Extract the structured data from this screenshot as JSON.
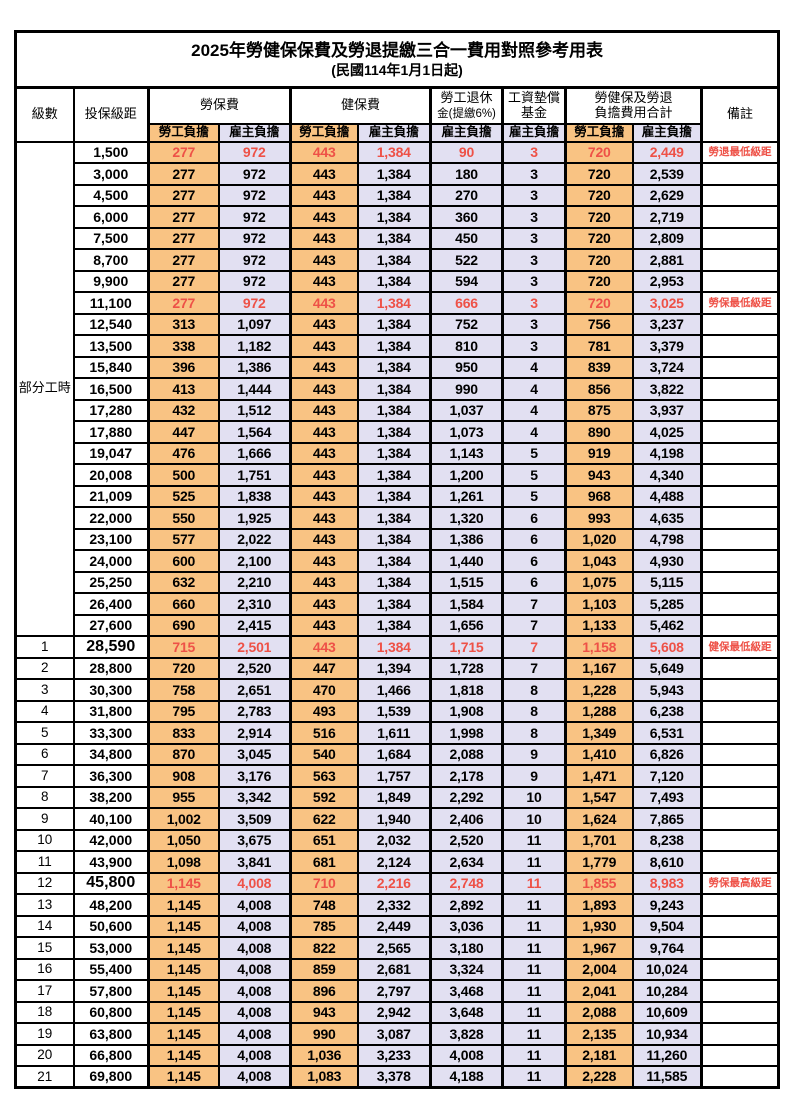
{
  "title": "2025年勞健保保費及勞退提繳三合一費用對照參考用表",
  "subtitle": "(民國114年1月1日起)",
  "header": {
    "level": "級數",
    "bracket": "投保級距",
    "labor_ins": "勞保費",
    "health_ins": "健保費",
    "pension_line1": "勞工退休",
    "pension_line2": "金(提繳6%)",
    "wage_fund_line1": "工資墊償",
    "wage_fund_line2": "基金",
    "total_line1": "勞健保及勞退",
    "total_line2": "負擔費用合計",
    "remark": "備註",
    "employee": "勞工負擔",
    "employer": "雇主負擔"
  },
  "group_label": "部分工時",
  "group_rowspan": 23,
  "colors": {
    "employee_bg": "#f9c383",
    "employer_bg": "#e2e0f2",
    "highlight_red": "#ee5147"
  },
  "rows": [
    {
      "bracket": "1,500",
      "v": [
        "277",
        "972",
        "443",
        "1,384",
        "90",
        "3",
        "720",
        "2,449"
      ],
      "remark": "勞退最低級距",
      "hl": true
    },
    {
      "bracket": "3,000",
      "v": [
        "277",
        "972",
        "443",
        "1,384",
        "180",
        "3",
        "720",
        "2,539"
      ]
    },
    {
      "bracket": "4,500",
      "v": [
        "277",
        "972",
        "443",
        "1,384",
        "270",
        "3",
        "720",
        "2,629"
      ]
    },
    {
      "bracket": "6,000",
      "v": [
        "277",
        "972",
        "443",
        "1,384",
        "360",
        "3",
        "720",
        "2,719"
      ]
    },
    {
      "bracket": "7,500",
      "v": [
        "277",
        "972",
        "443",
        "1,384",
        "450",
        "3",
        "720",
        "2,809"
      ]
    },
    {
      "bracket": "8,700",
      "v": [
        "277",
        "972",
        "443",
        "1,384",
        "522",
        "3",
        "720",
        "2,881"
      ]
    },
    {
      "bracket": "9,900",
      "v": [
        "277",
        "972",
        "443",
        "1,384",
        "594",
        "3",
        "720",
        "2,953"
      ]
    },
    {
      "bracket": "11,100",
      "v": [
        "277",
        "972",
        "443",
        "1,384",
        "666",
        "3",
        "720",
        "3,025"
      ],
      "remark": "勞保最低級距",
      "hl": true
    },
    {
      "bracket": "12,540",
      "v": [
        "313",
        "1,097",
        "443",
        "1,384",
        "752",
        "3",
        "756",
        "3,237"
      ]
    },
    {
      "bracket": "13,500",
      "v": [
        "338",
        "1,182",
        "443",
        "1,384",
        "810",
        "3",
        "781",
        "3,379"
      ]
    },
    {
      "bracket": "15,840",
      "v": [
        "396",
        "1,386",
        "443",
        "1,384",
        "950",
        "4",
        "839",
        "3,724"
      ]
    },
    {
      "bracket": "16,500",
      "v": [
        "413",
        "1,444",
        "443",
        "1,384",
        "990",
        "4",
        "856",
        "3,822"
      ]
    },
    {
      "bracket": "17,280",
      "v": [
        "432",
        "1,512",
        "443",
        "1,384",
        "1,037",
        "4",
        "875",
        "3,937"
      ]
    },
    {
      "bracket": "17,880",
      "v": [
        "447",
        "1,564",
        "443",
        "1,384",
        "1,073",
        "4",
        "890",
        "4,025"
      ]
    },
    {
      "bracket": "19,047",
      "v": [
        "476",
        "1,666",
        "443",
        "1,384",
        "1,143",
        "5",
        "919",
        "4,198"
      ]
    },
    {
      "bracket": "20,008",
      "v": [
        "500",
        "1,751",
        "443",
        "1,384",
        "1,200",
        "5",
        "943",
        "4,340"
      ]
    },
    {
      "bracket": "21,009",
      "v": [
        "525",
        "1,838",
        "443",
        "1,384",
        "1,261",
        "5",
        "968",
        "4,488"
      ]
    },
    {
      "bracket": "22,000",
      "v": [
        "550",
        "1,925",
        "443",
        "1,384",
        "1,320",
        "6",
        "993",
        "4,635"
      ]
    },
    {
      "bracket": "23,100",
      "v": [
        "577",
        "2,022",
        "443",
        "1,384",
        "1,386",
        "6",
        "1,020",
        "4,798"
      ]
    },
    {
      "bracket": "24,000",
      "v": [
        "600",
        "2,100",
        "443",
        "1,384",
        "1,440",
        "6",
        "1,043",
        "4,930"
      ]
    },
    {
      "bracket": "25,250",
      "v": [
        "632",
        "2,210",
        "443",
        "1,384",
        "1,515",
        "6",
        "1,075",
        "5,115"
      ]
    },
    {
      "bracket": "26,400",
      "v": [
        "660",
        "2,310",
        "443",
        "1,384",
        "1,584",
        "7",
        "1,103",
        "5,285"
      ]
    },
    {
      "bracket": "27,600",
      "v": [
        "690",
        "2,415",
        "443",
        "1,384",
        "1,656",
        "7",
        "1,133",
        "5,462"
      ]
    },
    {
      "level": "1",
      "bracket": "28,590",
      "v": [
        "715",
        "2,501",
        "443",
        "1,384",
        "1,715",
        "7",
        "1,158",
        "5,608"
      ],
      "remark": "健保最低級距",
      "hl": true,
      "big": true
    },
    {
      "level": "2",
      "bracket": "28,800",
      "v": [
        "720",
        "2,520",
        "447",
        "1,394",
        "1,728",
        "7",
        "1,167",
        "5,649"
      ]
    },
    {
      "level": "3",
      "bracket": "30,300",
      "v": [
        "758",
        "2,651",
        "470",
        "1,466",
        "1,818",
        "8",
        "1,228",
        "5,943"
      ]
    },
    {
      "level": "4",
      "bracket": "31,800",
      "v": [
        "795",
        "2,783",
        "493",
        "1,539",
        "1,908",
        "8",
        "1,288",
        "6,238"
      ]
    },
    {
      "level": "5",
      "bracket": "33,300",
      "v": [
        "833",
        "2,914",
        "516",
        "1,611",
        "1,998",
        "8",
        "1,349",
        "6,531"
      ]
    },
    {
      "level": "6",
      "bracket": "34,800",
      "v": [
        "870",
        "3,045",
        "540",
        "1,684",
        "2,088",
        "9",
        "1,410",
        "6,826"
      ]
    },
    {
      "level": "7",
      "bracket": "36,300",
      "v": [
        "908",
        "3,176",
        "563",
        "1,757",
        "2,178",
        "9",
        "1,471",
        "7,120"
      ]
    },
    {
      "level": "8",
      "bracket": "38,200",
      "v": [
        "955",
        "3,342",
        "592",
        "1,849",
        "2,292",
        "10",
        "1,547",
        "7,493"
      ]
    },
    {
      "level": "9",
      "bracket": "40,100",
      "v": [
        "1,002",
        "3,509",
        "622",
        "1,940",
        "2,406",
        "10",
        "1,624",
        "7,865"
      ]
    },
    {
      "level": "10",
      "bracket": "42,000",
      "v": [
        "1,050",
        "3,675",
        "651",
        "2,032",
        "2,520",
        "11",
        "1,701",
        "8,238"
      ]
    },
    {
      "level": "11",
      "bracket": "43,900",
      "v": [
        "1,098",
        "3,841",
        "681",
        "2,124",
        "2,634",
        "11",
        "1,779",
        "8,610"
      ]
    },
    {
      "level": "12",
      "bracket": "45,800",
      "v": [
        "1,145",
        "4,008",
        "710",
        "2,216",
        "2,748",
        "11",
        "1,855",
        "8,983"
      ],
      "remark": "勞保最高級距",
      "hl": true,
      "big": true
    },
    {
      "level": "13",
      "bracket": "48,200",
      "v": [
        "1,145",
        "4,008",
        "748",
        "2,332",
        "2,892",
        "11",
        "1,893",
        "9,243"
      ]
    },
    {
      "level": "14",
      "bracket": "50,600",
      "v": [
        "1,145",
        "4,008",
        "785",
        "2,449",
        "3,036",
        "11",
        "1,930",
        "9,504"
      ]
    },
    {
      "level": "15",
      "bracket": "53,000",
      "v": [
        "1,145",
        "4,008",
        "822",
        "2,565",
        "3,180",
        "11",
        "1,967",
        "9,764"
      ]
    },
    {
      "level": "16",
      "bracket": "55,400",
      "v": [
        "1,145",
        "4,008",
        "859",
        "2,681",
        "3,324",
        "11",
        "2,004",
        "10,024"
      ]
    },
    {
      "level": "17",
      "bracket": "57,800",
      "v": [
        "1,145",
        "4,008",
        "896",
        "2,797",
        "3,468",
        "11",
        "2,041",
        "10,284"
      ]
    },
    {
      "level": "18",
      "bracket": "60,800",
      "v": [
        "1,145",
        "4,008",
        "943",
        "2,942",
        "3,648",
        "11",
        "2,088",
        "10,609"
      ]
    },
    {
      "level": "19",
      "bracket": "63,800",
      "v": [
        "1,145",
        "4,008",
        "990",
        "3,087",
        "3,828",
        "11",
        "2,135",
        "10,934"
      ]
    },
    {
      "level": "20",
      "bracket": "66,800",
      "v": [
        "1,145",
        "4,008",
        "1,036",
        "3,233",
        "4,008",
        "11",
        "2,181",
        "11,260"
      ]
    },
    {
      "level": "21",
      "bracket": "69,800",
      "v": [
        "1,145",
        "4,008",
        "1,083",
        "3,378",
        "4,188",
        "11",
        "2,228",
        "11,585"
      ]
    }
  ]
}
